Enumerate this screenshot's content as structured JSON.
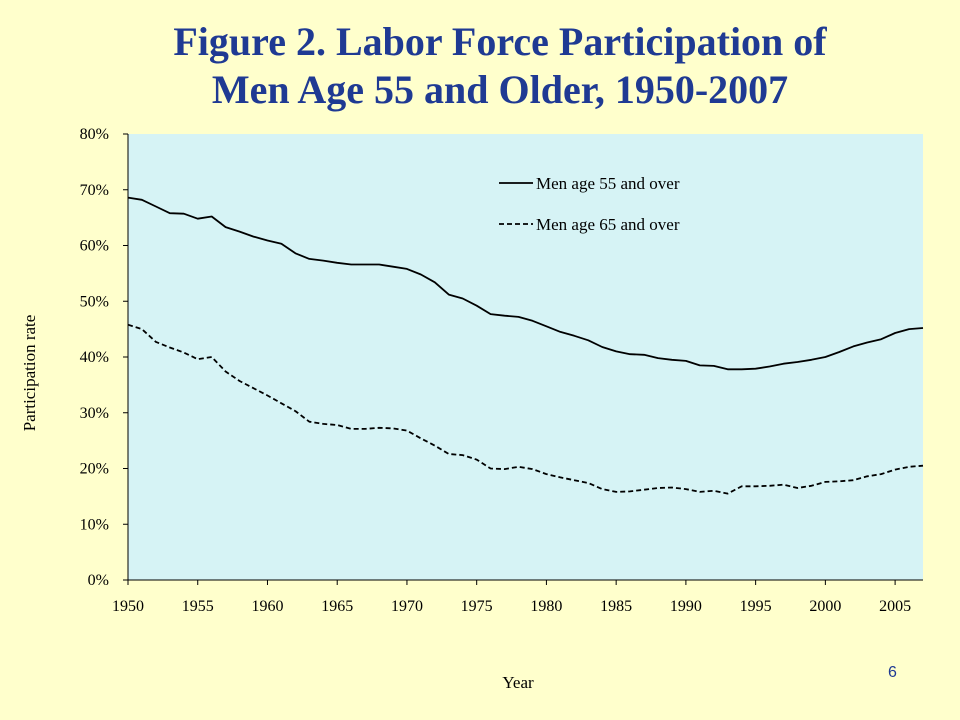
{
  "slide": {
    "title_line1": "Figure 2.  Labor Force Participation of",
    "title_line2": "Men Age 55 and Older, 1950-2007",
    "page_number": "6"
  },
  "colors": {
    "background": "#FFFFCC",
    "plot_area": "#D6F3F5",
    "title": "#1F3A93",
    "line": "#000000"
  },
  "chart_data": {
    "type": "line",
    "title": "Figure 2.  Labor Force Participation of Men Age 55 and Older, 1950-2007",
    "xlabel": "Year",
    "ylabel": "Participation rate",
    "xlim": [
      1950,
      2007
    ],
    "ylim": [
      0,
      80
    ],
    "x_ticks": [
      1950,
      1955,
      1960,
      1965,
      1970,
      1975,
      1980,
      1985,
      1990,
      1995,
      2000,
      2005
    ],
    "y_ticks": [
      "0%",
      "10%",
      "20%",
      "30%",
      "40%",
      "50%",
      "60%",
      "70%",
      "80%"
    ],
    "grid": false,
    "legend_position": "top-right",
    "x": [
      1950,
      1951,
      1952,
      1953,
      1954,
      1955,
      1956,
      1957,
      1958,
      1959,
      1960,
      1961,
      1962,
      1963,
      1964,
      1965,
      1966,
      1967,
      1968,
      1969,
      1970,
      1971,
      1972,
      1973,
      1974,
      1975,
      1976,
      1977,
      1978,
      1979,
      1980,
      1981,
      1982,
      1983,
      1984,
      1985,
      1986,
      1987,
      1988,
      1989,
      1990,
      1991,
      1992,
      1993,
      1994,
      1995,
      1996,
      1997,
      1998,
      1999,
      2000,
      2001,
      2002,
      2003,
      2004,
      2005,
      2006,
      2007
    ],
    "series": [
      {
        "name": "Men age 55 and over",
        "style": "solid",
        "values": [
          68.6,
          68.2,
          67.0,
          65.8,
          65.7,
          64.8,
          65.2,
          63.3,
          62.5,
          61.6,
          60.9,
          60.3,
          58.6,
          57.6,
          57.3,
          56.9,
          56.6,
          56.6,
          56.6,
          56.2,
          55.8,
          54.8,
          53.4,
          51.2,
          50.5,
          49.2,
          47.7,
          47.4,
          47.2,
          46.5,
          45.5,
          44.5,
          43.8,
          43.0,
          41.8,
          41.0,
          40.5,
          40.4,
          39.8,
          39.5,
          39.3,
          38.5,
          38.4,
          37.8,
          37.8,
          37.9,
          38.3,
          38.8,
          39.1,
          39.5,
          40.0,
          40.9,
          41.9,
          42.6,
          43.2,
          44.3,
          45.0,
          45.2
        ]
      },
      {
        "name": "Men age 65 and over",
        "style": "dashed",
        "values": [
          45.8,
          45.0,
          42.7,
          41.7,
          40.8,
          39.6,
          40.0,
          37.4,
          35.7,
          34.4,
          33.1,
          31.7,
          30.3,
          28.4,
          28.0,
          27.8,
          27.1,
          27.1,
          27.3,
          27.2,
          26.8,
          25.4,
          24.1,
          22.6,
          22.4,
          21.6,
          20.0,
          19.9,
          20.3,
          19.9,
          19.0,
          18.4,
          17.9,
          17.4,
          16.3,
          15.8,
          15.9,
          16.2,
          16.5,
          16.6,
          16.3,
          15.8,
          16.0,
          15.5,
          16.8,
          16.8,
          16.9,
          17.1,
          16.5,
          16.9,
          17.6,
          17.7,
          17.9,
          18.6,
          19.0,
          19.8,
          20.3,
          20.5
        ]
      }
    ]
  }
}
